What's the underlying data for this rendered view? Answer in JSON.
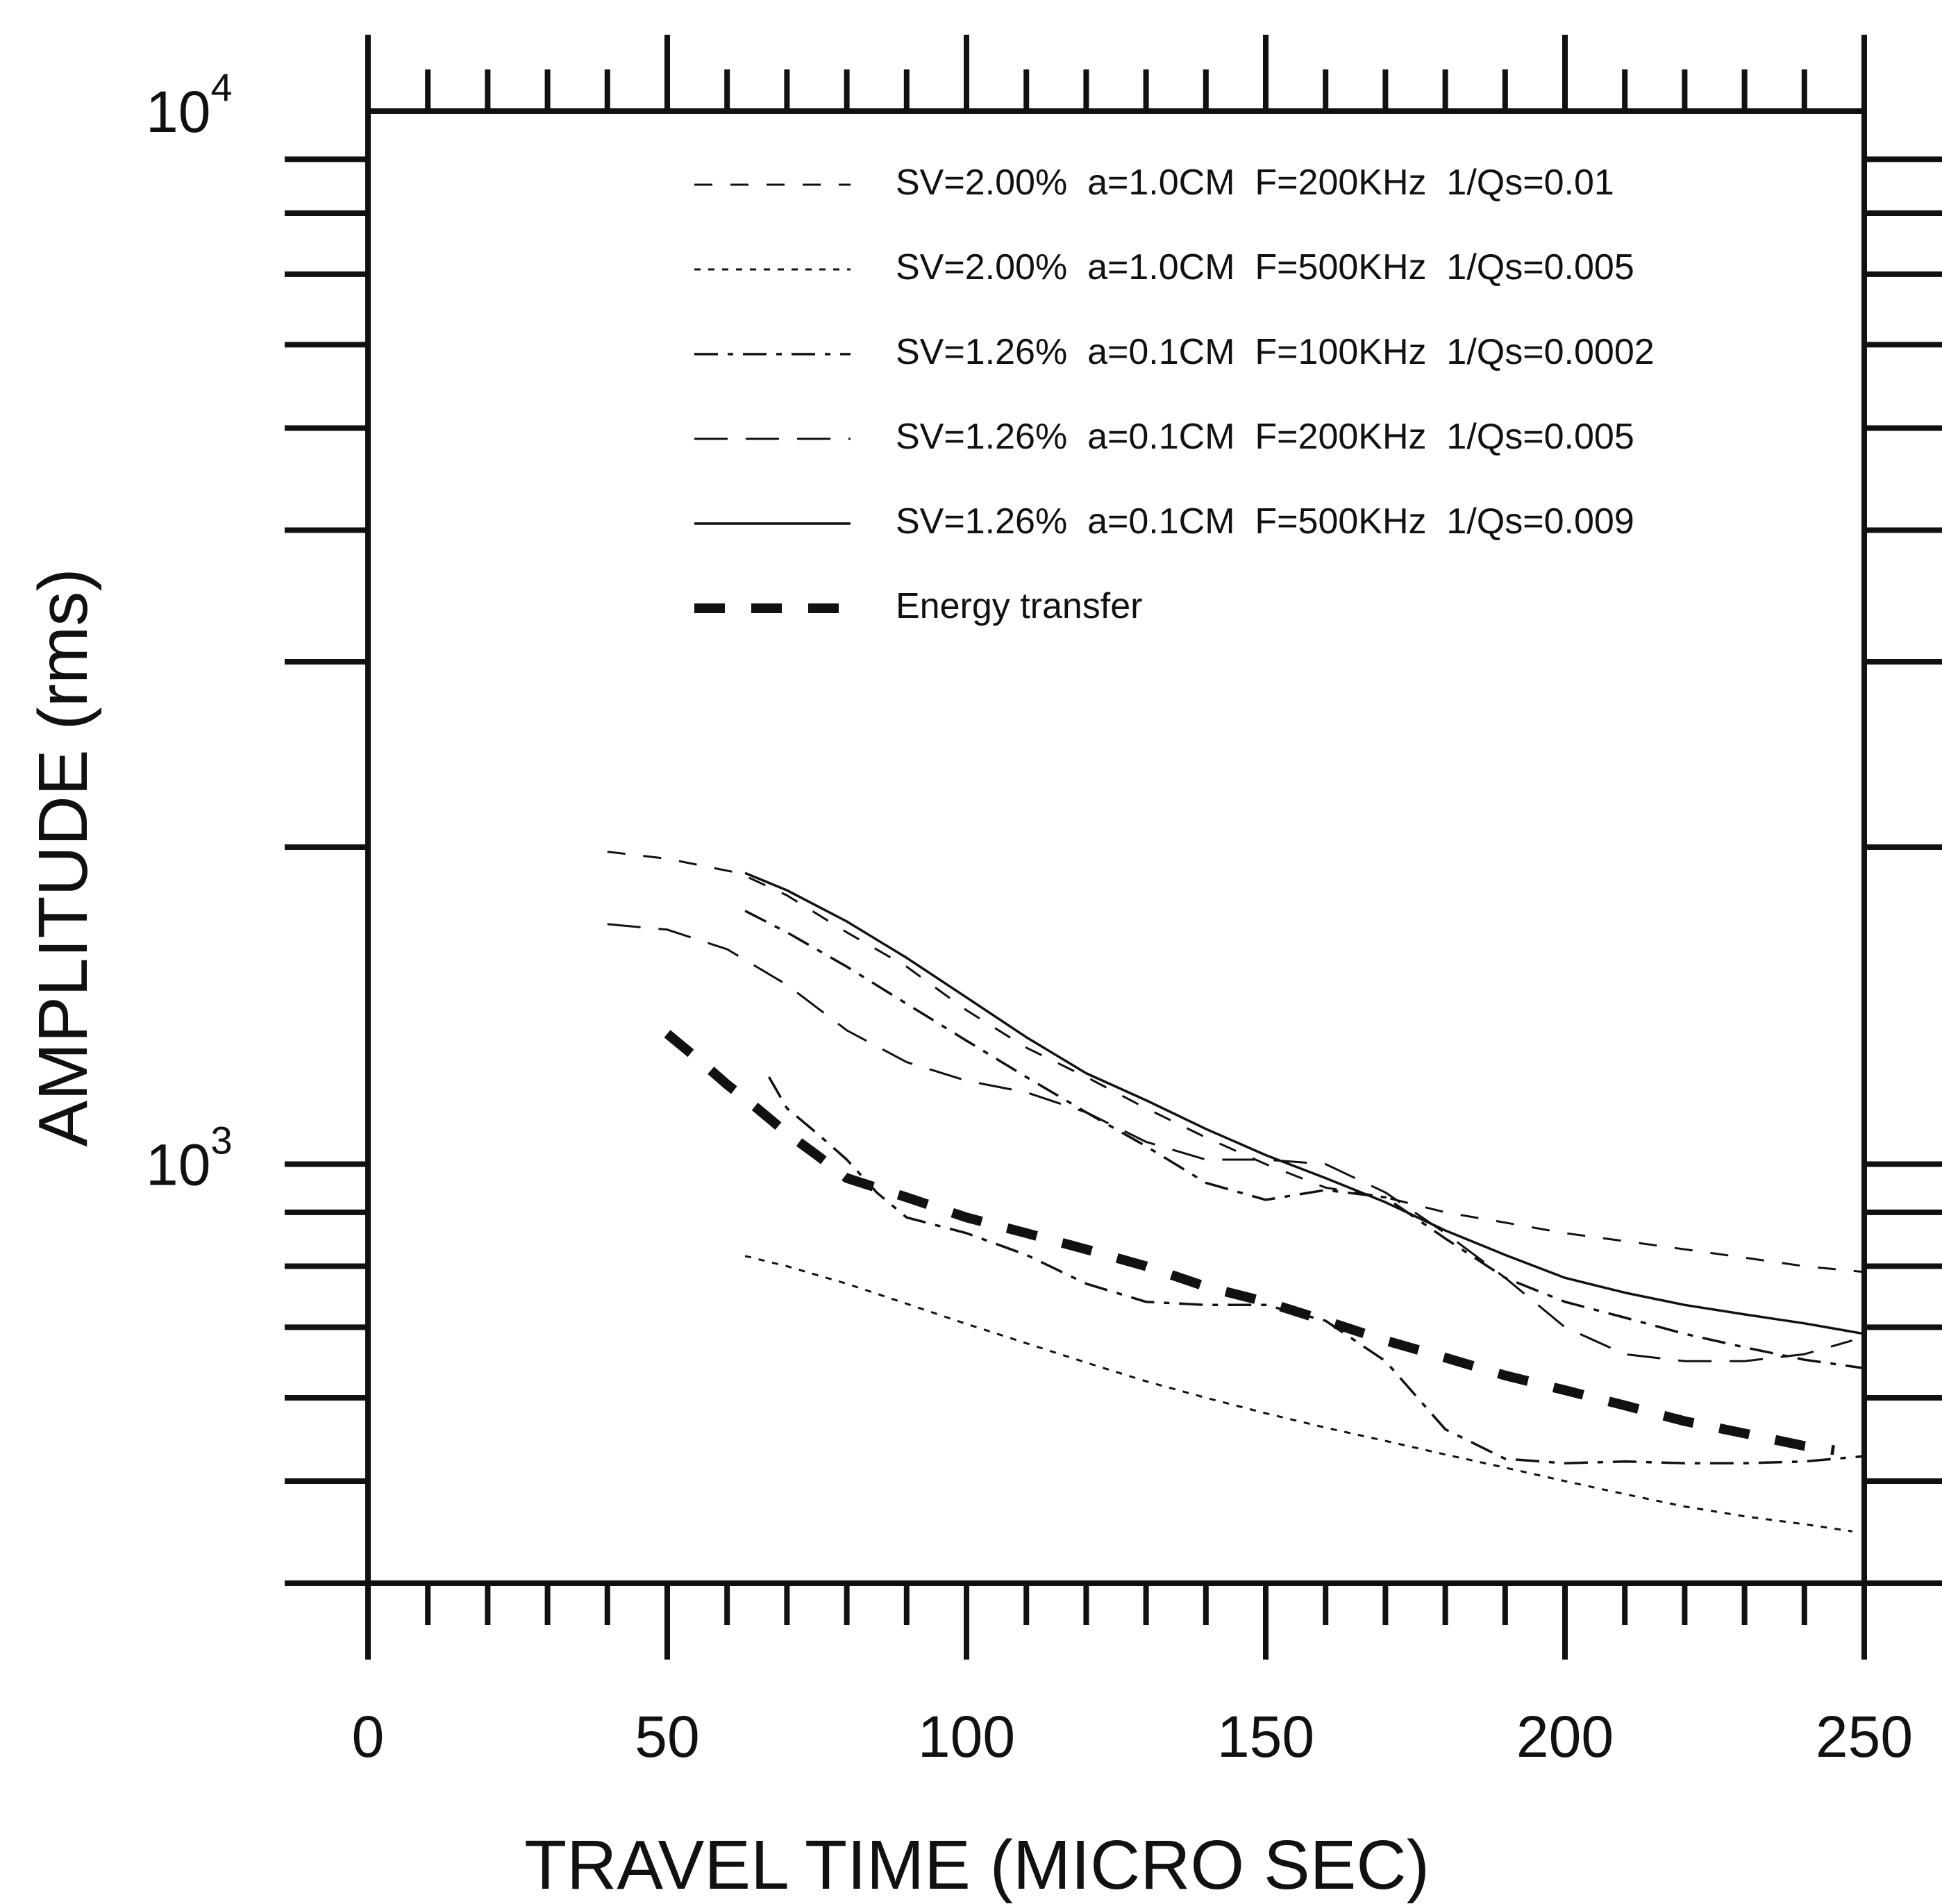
{
  "chart_data": {
    "type": "line",
    "xlabel": "TRAVEL TIME (MICRO SEC)",
    "ylabel": "AMPLITUDE (rms)",
    "xlim": [
      0,
      250
    ],
    "ylim": [
      400,
      10000
    ],
    "yscale": "log",
    "grid": false,
    "legend_position": "top-right",
    "x_ticks": [
      {
        "value": 0,
        "label": "0"
      },
      {
        "value": 50,
        "label": "50"
      },
      {
        "value": 100,
        "label": "100"
      },
      {
        "value": 150,
        "label": "150"
      },
      {
        "value": 200,
        "label": "200"
      },
      {
        "value": 250,
        "label": "250"
      }
    ],
    "y_ticks": [
      {
        "value": 1000,
        "base": "10",
        "exp": "3"
      },
      {
        "value": 10000,
        "base": "10",
        "exp": "4"
      }
    ],
    "series": [
      {
        "name": "SV=2.00%  a=1.0CM  F=200KHz  1/Qs=0.01",
        "style": "dash",
        "x": [
          40,
          50,
          62,
          70,
          80,
          90,
          100,
          110,
          120,
          130,
          140,
          150,
          160,
          170,
          180,
          190,
          200,
          210,
          220,
          230,
          240,
          250
        ],
        "y": [
          1980,
          1950,
          1890,
          1800,
          1660,
          1540,
          1400,
          1290,
          1210,
          1130,
          1060,
          1000,
          950,
          930,
          900,
          880,
          860,
          845,
          830,
          815,
          800,
          790
        ]
      },
      {
        "name": "SV=2.00%  a=1.0CM  F=500KHz  1/Qs=0.005",
        "style": "dot",
        "x": [
          63,
          70,
          80,
          90,
          100,
          110,
          120,
          130,
          140,
          150,
          160,
          170,
          180,
          190,
          200,
          210,
          220,
          230,
          240,
          248
        ],
        "y": [
          818,
          800,
          770,
          737,
          705,
          676,
          648,
          622,
          600,
          580,
          562,
          546,
          530,
          515,
          500,
          486,
          473,
          463,
          455,
          448
        ]
      },
      {
        "name": "SV=1.26%  a=0.1CM  F=100KHz  1/Qs=0.0002",
        "style": "dashdot",
        "x": [
          63,
          70,
          80,
          90,
          100,
          110,
          120,
          130,
          140,
          150,
          160,
          170,
          180,
          190,
          200,
          210,
          220,
          230,
          240,
          250
        ],
        "y": [
          1740,
          1660,
          1540,
          1420,
          1310,
          1210,
          1120,
          1040,
          960,
          925,
          945,
          930,
          850,
          780,
          740,
          715,
          690,
          670,
          652,
          640
        ]
      },
      {
        "name": "SV=1.26%  a=0.1CM  F=200KHz  1/Qs=0.005",
        "style": "longdash",
        "x": [
          40,
          50,
          60,
          70,
          80,
          90,
          100,
          110,
          120,
          130,
          140,
          150,
          160,
          170,
          180,
          190,
          200,
          210,
          220,
          230,
          240,
          248
        ],
        "y": [
          1690,
          1670,
          1600,
          1480,
          1340,
          1250,
          1200,
          1170,
          1120,
          1050,
          1010,
          1010,
          1000,
          940,
          860,
          780,
          700,
          660,
          650,
          650,
          660,
          680
        ]
      },
      {
        "name": "SV=1.26%  a=0.1CM  F=500KHz  1/Qs=0.009",
        "style": "solid",
        "x": [
          63,
          70,
          80,
          90,
          100,
          110,
          120,
          130,
          140,
          150,
          160,
          170,
          180,
          190,
          200,
          210,
          220,
          230,
          240,
          250
        ],
        "y": [
          1890,
          1820,
          1700,
          1570,
          1440,
          1320,
          1220,
          1150,
          1080,
          1020,
          970,
          920,
          865,
          820,
          780,
          755,
          735,
          720,
          706,
          690
        ]
      },
      {
        "name": "Energy transfer",
        "style": "thickdash",
        "x": [
          50,
          55,
          60,
          65,
          70,
          75,
          80,
          90,
          100,
          110,
          120,
          130,
          140,
          150,
          160,
          170,
          180,
          190,
          200,
          210,
          220,
          230,
          240,
          245
        ],
        "y": [
          1330,
          1260,
          1190,
          1130,
          1070,
          1020,
          970,
          930,
          890,
          860,
          830,
          800,
          765,
          740,
          710,
          680,
          655,
          630,
          610,
          590,
          570,
          555,
          540,
          535
        ]
      },
      {
        "name": "",
        "style": "dashdot",
        "x": [
          67,
          70,
          75,
          80,
          85,
          90,
          100,
          110,
          120,
          130,
          140,
          150,
          160,
          170,
          180,
          190,
          200,
          210,
          220,
          230,
          240,
          250
        ],
        "y": [
          1210,
          1130,
          1070,
          1010,
          940,
          890,
          860,
          820,
          770,
          740,
          735,
          735,
          710,
          650,
          560,
          525,
          520,
          522,
          520,
          520,
          522,
          528
        ]
      }
    ]
  }
}
